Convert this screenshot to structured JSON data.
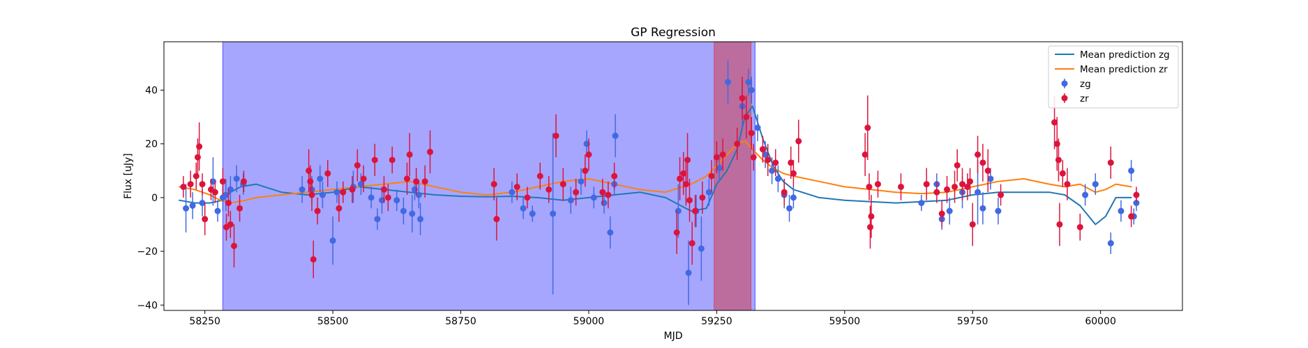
{
  "chart_data": {
    "type": "scatter",
    "title": "GP Regression",
    "xlabel": "MJD",
    "ylabel": "Flux [uJy]",
    "xlim": [
      58170,
      60160
    ],
    "ylim": [
      -42,
      58
    ],
    "xticks": [
      58250,
      58500,
      58750,
      59000,
      59250,
      59500,
      59750,
      60000
    ],
    "yticks": [
      -40,
      -20,
      0,
      20,
      40
    ],
    "grid": false,
    "legend_position": "top-right",
    "spans": [
      {
        "x0": 58285,
        "x1": 59325,
        "color": "#0000ff",
        "alpha": 0.35
      },
      {
        "x0": 59245,
        "x1": 59317,
        "color": "#d62728",
        "alpha": 0.45
      }
    ],
    "lines": [
      {
        "name": "Mean prediction zg",
        "color": "#1f77b4",
        "x": [
          58200,
          58230,
          58260,
          58285,
          58300,
          58320,
          58350,
          58400,
          58450,
          58500,
          58550,
          58600,
          58650,
          58700,
          58750,
          58800,
          58850,
          58900,
          58950,
          59000,
          59050,
          59100,
          59150,
          59180,
          59200,
          59230,
          59250,
          59270,
          59290,
          59305,
          59320,
          59340,
          59360,
          59380,
          59400,
          59450,
          59500,
          59550,
          59600,
          59650,
          59700,
          59750,
          59800,
          59850,
          59900,
          59930,
          59960,
          59990,
          60010,
          60030,
          60060
        ],
        "y": [
          -1,
          -2,
          -2,
          -1,
          2,
          4,
          5,
          2,
          1,
          2,
          4,
          3,
          2,
          1,
          0.5,
          0.3,
          0.5,
          0,
          -1,
          0,
          1,
          2,
          0,
          -3,
          -5,
          -4,
          5,
          10,
          18,
          30,
          34,
          22,
          12,
          6,
          3,
          0,
          -1,
          -1.5,
          -2,
          -1.5,
          -1,
          1,
          2,
          2,
          2,
          1,
          -3,
          -10,
          -7,
          0,
          0
        ]
      },
      {
        "name": "Mean prediction zr",
        "color": "#ff7f0e",
        "x": [
          58200,
          58230,
          58260,
          58280,
          58300,
          58330,
          58350,
          58400,
          58450,
          58500,
          58550,
          58600,
          58650,
          58700,
          58750,
          58800,
          58850,
          58900,
          58950,
          59000,
          59050,
          59100,
          59150,
          59200,
          59230,
          59250,
          59270,
          59290,
          59305,
          59320,
          59340,
          59360,
          59380,
          59400,
          59450,
          59500,
          59550,
          59600,
          59650,
          59700,
          59750,
          59800,
          59850,
          59900,
          59930,
          59960,
          59990,
          60010,
          60030,
          60060
        ],
        "y": [
          4,
          3,
          1,
          -1,
          -2,
          -1,
          0,
          1,
          2,
          3,
          4,
          5,
          6,
          4,
          2,
          1,
          2,
          4,
          6,
          7,
          5,
          3,
          2,
          5,
          8,
          12,
          16,
          20,
          21,
          18,
          14,
          11,
          9,
          8,
          6,
          4,
          3,
          2,
          1.5,
          2,
          4,
          6,
          7,
          5,
          4,
          5,
          2,
          3,
          5,
          4
        ]
      }
    ],
    "series": [
      {
        "name": "zg",
        "color": "#4169e1",
        "points": [
          [
            58213,
            -4,
            9
          ],
          [
            58226,
            -3,
            5
          ],
          [
            58245,
            -2,
            5
          ],
          [
            58266,
            6,
            9
          ],
          [
            58275,
            -5,
            4
          ],
          [
            58285,
            0,
            5
          ],
          [
            58291,
            1,
            6
          ],
          [
            58300,
            3,
            5
          ],
          [
            58312,
            7,
            5
          ],
          [
            58325,
            5,
            4
          ],
          [
            58440,
            3,
            5
          ],
          [
            58459,
            3,
            5
          ],
          [
            58480,
            1,
            5
          ],
          [
            58500,
            -16,
            9
          ],
          [
            58508,
            2,
            4
          ],
          [
            58475,
            7,
            5
          ],
          [
            58540,
            4,
            6
          ],
          [
            58555,
            5,
            4
          ],
          [
            58575,
            0,
            4
          ],
          [
            58587,
            -8,
            4
          ],
          [
            58596,
            -1,
            5
          ],
          [
            58625,
            -1,
            4
          ],
          [
            58638,
            -5,
            5
          ],
          [
            58655,
            -6,
            7
          ],
          [
            58668,
            1,
            5
          ],
          [
            58671,
            -8,
            6
          ],
          [
            58660,
            3,
            4
          ],
          [
            58850,
            2,
            4
          ],
          [
            58872,
            -4,
            4
          ],
          [
            58890,
            -6,
            3
          ],
          [
            58930,
            -6,
            30
          ],
          [
            58965,
            -1,
            5
          ],
          [
            58985,
            6,
            5
          ],
          [
            58996,
            20,
            5
          ],
          [
            59010,
            0,
            4
          ],
          [
            59030,
            -2,
            4
          ],
          [
            59042,
            -13,
            6
          ],
          [
            59052,
            23,
            8
          ],
          [
            59050,
            5,
            4
          ],
          [
            59175,
            -5,
            10
          ],
          [
            59195,
            -28,
            12
          ],
          [
            59220,
            -19,
            12
          ],
          [
            59210,
            -5,
            6
          ],
          [
            59235,
            2,
            5
          ],
          [
            59255,
            11,
            5
          ],
          [
            59272,
            43,
            8
          ],
          [
            59300,
            34,
            8
          ],
          [
            59312,
            43,
            5
          ],
          [
            59318,
            40,
            5
          ],
          [
            59330,
            26,
            5
          ],
          [
            59345,
            16,
            5
          ],
          [
            59358,
            10,
            5
          ],
          [
            59370,
            7,
            5
          ],
          [
            59382,
            1,
            5
          ],
          [
            59392,
            -4,
            5
          ],
          [
            59400,
            0,
            4
          ],
          [
            59650,
            -2,
            3
          ],
          [
            59680,
            5,
            4
          ],
          [
            59690,
            -8,
            4
          ],
          [
            59705,
            -5,
            5
          ],
          [
            59730,
            2,
            6
          ],
          [
            59760,
            2,
            12
          ],
          [
            59770,
            -4,
            6
          ],
          [
            59785,
            7,
            4
          ],
          [
            59800,
            -5,
            5
          ],
          [
            59970,
            1,
            4
          ],
          [
            59990,
            5,
            4
          ],
          [
            60020,
            -17,
            4
          ],
          [
            60040,
            -5,
            4
          ],
          [
            60060,
            10,
            4
          ],
          [
            60065,
            -7,
            3
          ],
          [
            60070,
            -2,
            3
          ]
        ]
      },
      {
        "name": "zr",
        "color": "#dc143c",
        "points": [
          [
            58208,
            4,
            4
          ],
          [
            58222,
            5,
            5
          ],
          [
            58233,
            8,
            5
          ],
          [
            58239,
            19,
            9
          ],
          [
            58236,
            15,
            7
          ],
          [
            58245,
            5,
            4
          ],
          [
            58250,
            -8,
            6
          ],
          [
            58262,
            3,
            4
          ],
          [
            58270,
            2,
            4
          ],
          [
            58285,
            6,
            5
          ],
          [
            58292,
            -11,
            5
          ],
          [
            58296,
            -2,
            5
          ],
          [
            58300,
            -10,
            5
          ],
          [
            58307,
            -18,
            8
          ],
          [
            58318,
            -4,
            5
          ],
          [
            58326,
            6,
            4
          ],
          [
            58453,
            10,
            8
          ],
          [
            58456,
            6,
            6
          ],
          [
            58459,
            1,
            6
          ],
          [
            58462,
            -23,
            7
          ],
          [
            58470,
            -5,
            5
          ],
          [
            58490,
            9,
            5
          ],
          [
            58512,
            -4,
            5
          ],
          [
            58520,
            2,
            4
          ],
          [
            58538,
            3,
            5
          ],
          [
            58548,
            12,
            6
          ],
          [
            58560,
            7,
            5
          ],
          [
            58582,
            14,
            6
          ],
          [
            58600,
            3,
            5
          ],
          [
            58608,
            0,
            5
          ],
          [
            58616,
            14,
            5
          ],
          [
            58645,
            7,
            6
          ],
          [
            58650,
            16,
            8
          ],
          [
            58663,
            6,
            5
          ],
          [
            58680,
            6,
            6
          ],
          [
            58690,
            17,
            8
          ],
          [
            58815,
            5,
            6
          ],
          [
            58820,
            -8,
            8
          ],
          [
            58860,
            4,
            5
          ],
          [
            58880,
            0,
            4
          ],
          [
            58905,
            8,
            5
          ],
          [
            58922,
            3,
            5
          ],
          [
            58936,
            23,
            8
          ],
          [
            58950,
            5,
            6
          ],
          [
            58975,
            2,
            5
          ],
          [
            58993,
            10,
            6
          ],
          [
            59000,
            16,
            6
          ],
          [
            59027,
            2,
            5
          ],
          [
            59038,
            1,
            5
          ],
          [
            59050,
            8,
            5
          ],
          [
            59172,
            -13,
            8
          ],
          [
            59178,
            7,
            8
          ],
          [
            59190,
            5,
            8
          ],
          [
            59185,
            9,
            8
          ],
          [
            59193,
            14,
            10
          ],
          [
            59197,
            -1,
            8
          ],
          [
            59202,
            -17,
            8
          ],
          [
            59208,
            -5,
            6
          ],
          [
            59222,
            0,
            6
          ],
          [
            59240,
            8,
            6
          ],
          [
            59250,
            15,
            6
          ],
          [
            59262,
            16,
            6
          ],
          [
            59290,
            20,
            6
          ],
          [
            59300,
            37,
            8
          ],
          [
            59308,
            30,
            8
          ],
          [
            59318,
            24,
            6
          ],
          [
            59322,
            15,
            5
          ],
          [
            59340,
            18,
            5
          ],
          [
            59350,
            14,
            6
          ],
          [
            59365,
            13,
            5
          ],
          [
            59382,
            2,
            5
          ],
          [
            59395,
            13,
            6
          ],
          [
            59410,
            21,
            8
          ],
          [
            59400,
            9,
            5
          ],
          [
            59540,
            16,
            8
          ],
          [
            59545,
            26,
            12
          ],
          [
            59548,
            4,
            5
          ],
          [
            59550,
            -11,
            8
          ],
          [
            59552,
            -7,
            8
          ],
          [
            59565,
            5,
            5
          ],
          [
            59610,
            4,
            5
          ],
          [
            59660,
            5,
            6
          ],
          [
            59680,
            2,
            4
          ],
          [
            59690,
            -6,
            5
          ],
          [
            59700,
            3,
            5
          ],
          [
            59715,
            4,
            6
          ],
          [
            59720,
            12,
            6
          ],
          [
            59730,
            5,
            6
          ],
          [
            59740,
            4,
            5
          ],
          [
            59745,
            6,
            5
          ],
          [
            59750,
            -10,
            8
          ],
          [
            59760,
            16,
            7
          ],
          [
            59770,
            13,
            7
          ],
          [
            59780,
            10,
            8
          ],
          [
            59805,
            1,
            4
          ],
          [
            59910,
            28,
            10
          ],
          [
            59915,
            20,
            10
          ],
          [
            59918,
            14,
            8
          ],
          [
            59920,
            -10,
            8
          ],
          [
            59926,
            9,
            5
          ],
          [
            59935,
            5,
            6
          ],
          [
            59960,
            -11,
            5
          ],
          [
            60020,
            13,
            6
          ],
          [
            60060,
            -7,
            4
          ],
          [
            60070,
            1,
            3
          ]
        ]
      }
    ]
  }
}
